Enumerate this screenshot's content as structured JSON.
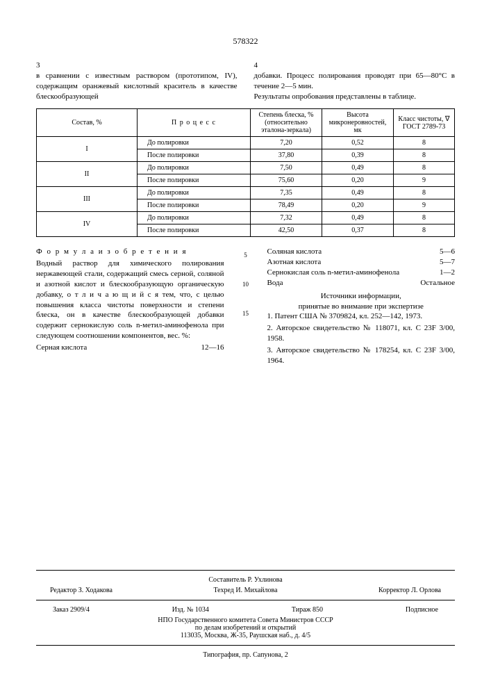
{
  "patent_number": "578322",
  "left_page_no": "3",
  "right_page_no": "4",
  "intro_left": "в сравнении с известным раствором (прототипом, IV), содержащим оранжевый кислотный краситель в качестве блескообразующей",
  "intro_right": "добавки. Процесс полирования проводят при 65—80°C в течение 2—5 мин.\nРезультаты опробования представлены в таблице.",
  "table": {
    "headers": [
      "Состав, %",
      "П р о ц е с с",
      "Степень блеска, % (относительно эталона-зеркала)",
      "Высота микронеровностей, мк",
      "Класс чистоты, ∇ ГОСТ 2789-73"
    ],
    "rows": [
      [
        "I",
        "До полировки",
        "7,20",
        "0,52",
        "8"
      ],
      [
        "",
        "После полировки",
        "37,80",
        "0,39",
        "8"
      ],
      [
        "II",
        "До полировки",
        "7,50",
        "0,49",
        "8"
      ],
      [
        "",
        "После полировки",
        "75,60",
        "0,20",
        "9"
      ],
      [
        "III",
        "До полировки",
        "7,35",
        "0,49",
        "8"
      ],
      [
        "",
        "После полировки",
        "78,49",
        "0,20",
        "9"
      ],
      [
        "IV",
        "До полировки",
        "7,32",
        "0,49",
        "8"
      ],
      [
        "",
        "После полировки",
        "42,50",
        "0,37",
        "8"
      ]
    ]
  },
  "formula_title": "Ф о р м у л а  и з о б р е т е н и я",
  "claim_left": "Водный раствор для химического полирования нержавеющей стали, содержащий смесь серной, соляной и азотной кислот и блескообразующую органическую добавку, о т л и ч а ю щ и й с я  тем, что, с целью повышения класса чистоты поверхности и степени блеска, он в качестве блескообразующей добавки содержит сернокислую соль n-метил-аминофенола при следующем соотношении компонентов, вес. %:",
  "claim_left_last": "Серная кислота",
  "claim_left_last_val": "12—16",
  "line_5": "5",
  "line_10": "10",
  "line_15": "15",
  "ingredients": [
    {
      "name": "Соляная кислота",
      "val": "5—6"
    },
    {
      "name": "Азотная кислота",
      "val": "5—7"
    },
    {
      "name": "Сернокислая соль n-метил-аминофенола",
      "val": "1—2"
    },
    {
      "name": "Вода",
      "val": "Остальное"
    }
  ],
  "sources_title": "Источники информации,\nпринятые во внимание при экспертизе",
  "refs": [
    "1. Патент США № 3709824, кл. 252—142, 1973.",
    "2. Авторское свидетельство № 118071, кл. С 23F 3/00, 1958.",
    "3. Авторское свидетельство № 178254, кл. С 23F 3/00, 1964."
  ],
  "footer": {
    "compiler": "Составитель  Р. Ухлинова",
    "editor": "Редактор З. Ходакова",
    "techred": "Техред И. Михайлова",
    "corrector": "Корректор Л. Орлова",
    "order": "Заказ 2909/4",
    "izd": "Изд. № 1034",
    "tirazh": "Тираж  850",
    "subscr": "Подписное",
    "org1": "НПО Государственного комитета Совета Министров СССР",
    "org2": "по делам изобретений и открытий",
    "address": "113035, Москва, Ж-35, Раушская наб., д. 4/5",
    "typo": "Типография, пр. Сапунова, 2"
  }
}
